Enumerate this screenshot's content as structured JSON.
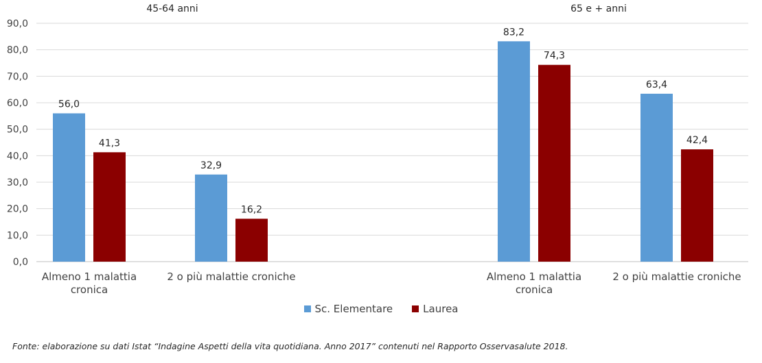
{
  "chart_data": {
    "type": "bar",
    "groups": [
      {
        "title": "45-64 anni",
        "categories": [
          [
            "Almeno 1 malattia",
            "cronica"
          ],
          [
            "2 o più malattie croniche"
          ]
        ],
        "series": [
          {
            "name": "Sc. Elementare",
            "values": [
              56.0,
              32.9
            ],
            "labels": [
              "56,0",
              "32,9"
            ]
          },
          {
            "name": "Laurea",
            "values": [
              41.3,
              16.2
            ],
            "labels": [
              "41,3",
              "16,2"
            ]
          }
        ]
      },
      {
        "title": "65 e + anni",
        "categories": [
          [
            "Almeno 1 malattia",
            "cronica"
          ],
          [
            "2 o più malattie croniche"
          ]
        ],
        "series": [
          {
            "name": "Sc. Elementare",
            "values": [
              83.2,
              63.4
            ],
            "labels": [
              "83,2",
              "63,4"
            ]
          },
          {
            "name": "Laurea",
            "values": [
              74.3,
              42.4
            ],
            "labels": [
              "74,3",
              "42,4"
            ]
          }
        ]
      }
    ],
    "ylim": [
      0,
      90
    ],
    "yticks": [
      "0,0",
      "10,0",
      "20,0",
      "30,0",
      "40,0",
      "50,0",
      "60,0",
      "70,0",
      "80,0",
      "90,0"
    ],
    "grid": true,
    "legend_position": "bottom",
    "colors": {
      "Sc. Elementare": "#5b9bd5",
      "Laurea": "#8b0000"
    }
  },
  "legend": [
    {
      "label": "Sc. Elementare",
      "color": "#5b9bd5"
    },
    {
      "label": "Laurea",
      "color": "#8b0000"
    }
  ],
  "source_note": "Fonte: elaborazione su dati Istat “Indagine Aspetti della vita quotidiana. Anno 2017” contenuti nel Rapporto Osservasalute 2018."
}
